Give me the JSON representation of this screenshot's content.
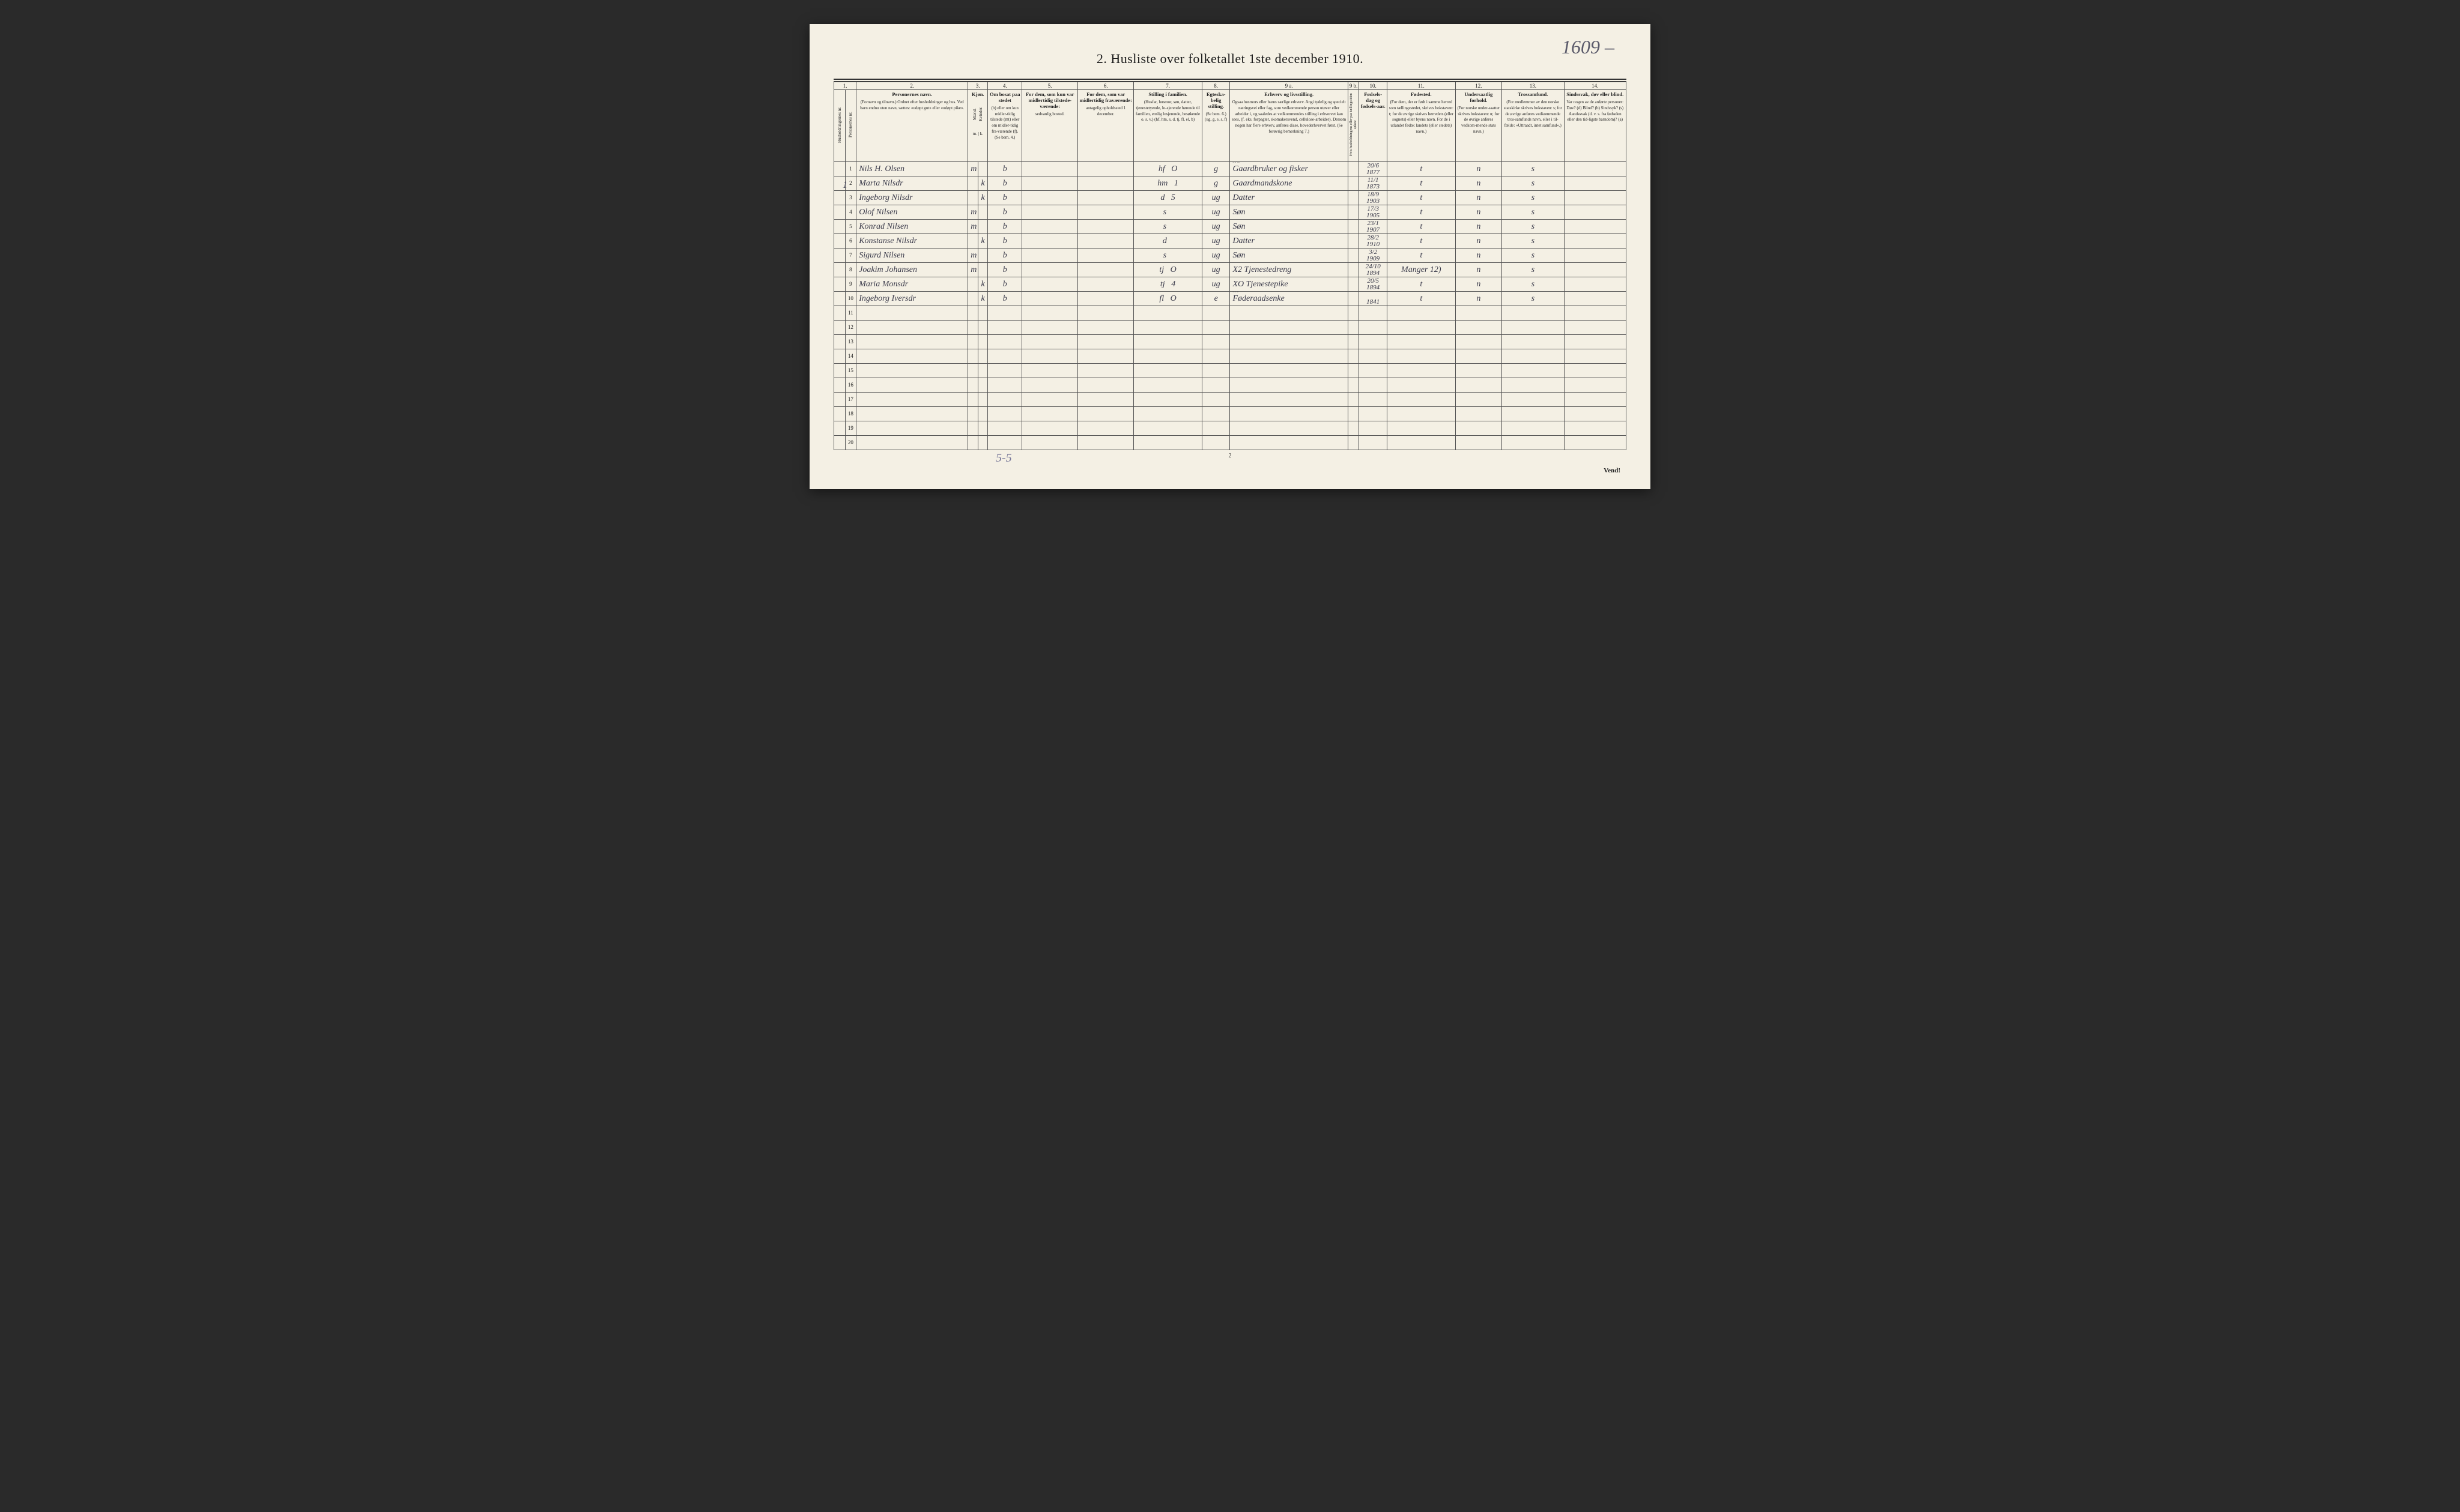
{
  "handwritten_top_right": "1609 –",
  "title": "2.  Husliste over folketallet 1ste december 1910.",
  "left_margin_mark": "1",
  "bottom_handwritten": "5-5",
  "page_number_bottom": "2",
  "vend_label": "Vend!",
  "column_numbers": [
    "1.",
    "",
    "2.",
    "3.",
    "4.",
    "5.",
    "6.",
    "7.",
    "8.",
    "9 a.",
    "9 b.",
    "10.",
    "11.",
    "12.",
    "13.",
    "14."
  ],
  "headers": {
    "c1": "Husholdningernes nr.",
    "c1b": "Personernes nr.",
    "c2_label": "Personernes navn.",
    "c2_sub": "(Fornavn og tilnavn.)\nOrdnet efter husholdninger og hus.\nVed barn endnu uten navn, sættes: «udøpt gut» eller «udøpt pike».",
    "c3_label": "Kjøn.",
    "c3_sub_m": "Mænd.",
    "c3_sub_k": "Kvinder.",
    "c3_mk": "m. | k.",
    "c4_label": "Om bosat paa stedet",
    "c4_sub": "(b) eller om kun midler-tidig tilstede (mt) eller om midler-tidig fra-værende (f). (Se bem. 4.)",
    "c5_label": "For dem, som kun var midlertidig tilstede-værende:",
    "c5_sub": "sedvanlig bosted.",
    "c6_label": "For dem, som var midlertidig fraværende:",
    "c6_sub": "antagelig opholdssted 1 december.",
    "c7_label": "Stilling i familien.",
    "c7_sub": "(Husfar, husmor, søn, datter, tjenestetyende, lo-sjerende hørende til familien, enslig losjerende, besøkende o. s. v.)\n(hf, hm, s, d, tj, fl, el, b)",
    "c8_label": "Egteska-belig stilling.",
    "c8_sub": "(Se bem. 6.)\n(ug, g, e, s, f)",
    "c9a_label": "Erhverv og livsstilling.",
    "c9a_sub": "Ogsaa husmors eller barns særlige erhverv. Angi tydelig og specielt næringsvei eller fag, som vedkommende person utøver eller arbeider i, og saaledes at vedkommendes stilling i erhvervet kan sees, (f. eks. forpagter, skomakersvend, cellulose-arbeider). Dersom nogen har flere erhverv, anføres disse, hovederhvervet først.\n(Se forøvrig bemerkning 7.)",
    "c9b_label": "Hvis husholdningens eller pas tællingstiden søkes:",
    "c10_label": "Fødsels-dag og fødsels-aar.",
    "c11_label": "Fødested.",
    "c11_sub": "(For dem, der er født i samme herred som tællingsstedet, skrives bokstaven: t; for de øvrige skrives herredets (eller sognets) eller byens navn. For de i utlandet fødte: landets (eller stedets) navn.)",
    "c12_label": "Undersaatlig forhold.",
    "c12_sub": "(For norske under-saatter skrives bokstaven: n; for de øvrige anføres vedkom-mende stats navn.)",
    "c13_label": "Trossamfund.",
    "c13_sub": "(For medlemmer av den norske statskirke skrives bokstaven: s; for de øvrige anføres vedkommende tros-samfunds navn, eller i til-fælde: «Uttraadt, intet samfund».)",
    "c14_label": "Sindssvak, døv eller blind.",
    "c14_sub": "Var nogen av de anførte personer:\nDøv?     (d)\nBlind?   (b)\nSindssyk? (s)\nAandssvak (d. v. s. fra fødselen eller den tid-ligste barndom)? (a)"
  },
  "rows": [
    {
      "n": "1",
      "name": "Nils H. Olsen",
      "mk": "m",
      "bos": "b",
      "c7": "hf",
      "c7b": "O",
      "c8": "g",
      "c9": "Gaardbruker og fisker",
      "c9pre": "XO",
      "c10": "20/6\n1877",
      "c11": "t",
      "c12": "n",
      "c13": "s",
      "c14": ""
    },
    {
      "n": "2",
      "name": "Marta Nilsdr",
      "mk": "k",
      "bos": "b",
      "c7": "hm",
      "c7b": "1",
      "c8": "g",
      "c9": "Gaardmandskone",
      "c9pre": "",
      "c10": "11/1\n1873",
      "c11": "t",
      "c12": "n",
      "c13": "s",
      "c14": ""
    },
    {
      "n": "3",
      "name": "Ingeborg Nilsdr",
      "mk": "k",
      "bos": "b",
      "c7": "d",
      "c7b": "5",
      "c8": "ug",
      "c9": "Datter",
      "c9pre": "",
      "c10": "18/9\n1903",
      "c11": "t",
      "c12": "n",
      "c13": "s",
      "c14": ""
    },
    {
      "n": "4",
      "name": "Olof Nilsen",
      "mk": "m",
      "bos": "b",
      "c7": "s",
      "c7b": "",
      "c8": "ug",
      "c9": "Søn",
      "c9pre": "",
      "c10": "17/3\n1905",
      "c11": "t",
      "c12": "n",
      "c13": "s",
      "c14": ""
    },
    {
      "n": "5",
      "name": "Konrad Nilsen",
      "mk": "m",
      "bos": "b",
      "c7": "s",
      "c7b": "",
      "c8": "ug",
      "c9": "Søn",
      "c9pre": "",
      "c10": "23/1\n1907",
      "c11": "t",
      "c12": "n",
      "c13": "s",
      "c14": ""
    },
    {
      "n": "6",
      "name": "Konstanse Nilsdr",
      "mk": "k",
      "bos": "b",
      "c7": "d",
      "c7b": "",
      "c8": "ug",
      "c9": "Datter",
      "c9pre": "",
      "c10": "28/2\n1910",
      "c11": "t",
      "c12": "n",
      "c13": "s",
      "c14": ""
    },
    {
      "n": "7",
      "name": "Sigurd Nilsen",
      "mk": "m",
      "bos": "b",
      "c7": "s",
      "c7b": "",
      "c8": "ug",
      "c9": "Søn",
      "c9pre": "",
      "c10": "3/2\n1909",
      "c11": "t",
      "c12": "n",
      "c13": "s",
      "c14": ""
    },
    {
      "n": "8",
      "name": "Joakim Johansen",
      "mk": "m",
      "bos": "b",
      "c7": "tj",
      "c7b": "O",
      "c8": "ug",
      "c9": "X2 Tjenestedreng",
      "c9pre": "",
      "c10": "24/10\n1894",
      "c11": "Manger 12)",
      "c12": "n",
      "c13": "s",
      "c14": ""
    },
    {
      "n": "9",
      "name": "Maria Monsdr",
      "mk": "k",
      "bos": "b",
      "c7": "tj",
      "c7b": "4",
      "c8": "ug",
      "c9": "XO Tjenestepike",
      "c9pre": "",
      "c10": "20/5\n1894",
      "c11": "t",
      "c12": "n",
      "c13": "s",
      "c14": ""
    },
    {
      "n": "10",
      "name": "Ingeborg Iversdr",
      "mk": "k",
      "bos": "b",
      "c7": "fl",
      "c7b": "O",
      "c8": "e",
      "c9": "Føderaadsenke",
      "c9pre": "X1",
      "c10": "\n1841",
      "c11": "t",
      "c12": "n",
      "c13": "s",
      "c14": ""
    }
  ],
  "empty_row_labels": [
    "11",
    "12",
    "13",
    "14",
    "15",
    "16",
    "17",
    "18",
    "19",
    "20"
  ],
  "colwidths": {
    "c1": "18px",
    "c1b": "18px",
    "c2": "180px",
    "c3m": "16px",
    "c3k": "16px",
    "c4": "55px",
    "c5": "90px",
    "c6": "90px",
    "c7": "110px",
    "c8": "45px",
    "c9a": "190px",
    "c9b": "18px",
    "c10": "45px",
    "c11": "110px",
    "c12": "75px",
    "c13": "100px",
    "c14": "100px"
  },
  "colors": {
    "paper": "#f4f0e4",
    "ink": "#222222",
    "handwriting": "#3a3a4a",
    "pencil": "#7a7a9a",
    "border": "#555555"
  }
}
